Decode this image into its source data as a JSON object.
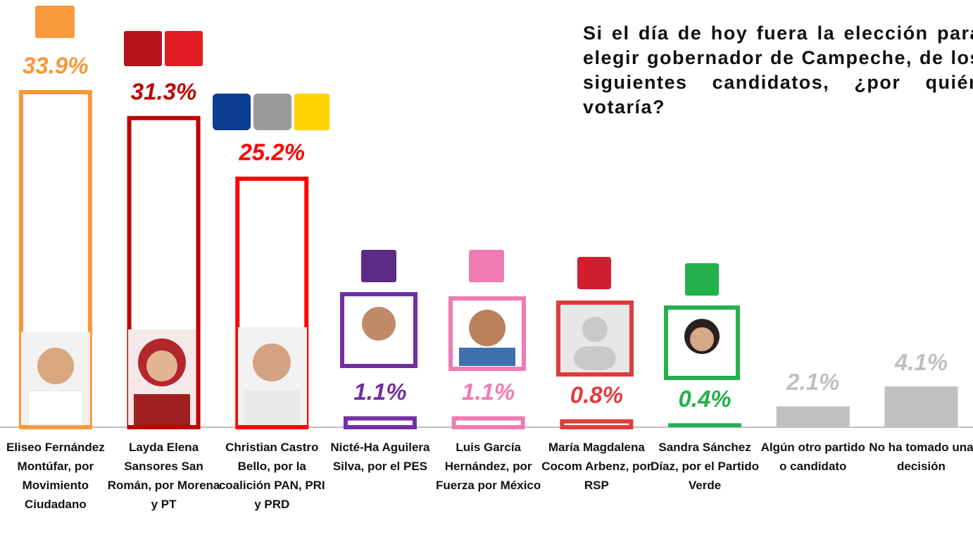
{
  "chart_data": {
    "type": "bar",
    "title": "Si el día de hoy fuera la elección para elegir gobernador de Campeche, de los siguientes candidatos, ¿por quién votaría?",
    "categories": [
      "Eliseo Fernández Montúfar, por Movimiento Ciudadano",
      "Layda Elena Sansores San Román, por Morena y PT",
      "Christian Castro Bello, por la coalición PAN, PRI y PRD",
      "Nicté-Ha Aguilera Silva, por el PES",
      "Luis García Hernández, por Fuerza por México",
      "María Magdalena Cocom Arbenz, por RSP",
      "Sandra Sánchez Díaz, por el Partido Verde",
      "Algún otro partido o candidato",
      "No ha tomado una decisión"
    ],
    "values": [
      33.9,
      31.3,
      25.2,
      1.1,
      1.1,
      0.8,
      0.4,
      2.1,
      4.1
    ],
    "value_labels": [
      "33.9%",
      "31.3%",
      "25.2%",
      "1.1%",
      "1.1%",
      "0.8%",
      "0.4%",
      "2.1%",
      "4.1%"
    ],
    "colors": [
      "#f7983a",
      "#c00000",
      "#ff0000",
      "#7030a0",
      "#f07ab3",
      "#e03c3c",
      "#22b14c",
      "#bfbfbf",
      "#bfbfbf"
    ],
    "outlined": [
      true,
      true,
      true,
      true,
      true,
      true,
      false,
      false,
      false
    ]
  }
}
